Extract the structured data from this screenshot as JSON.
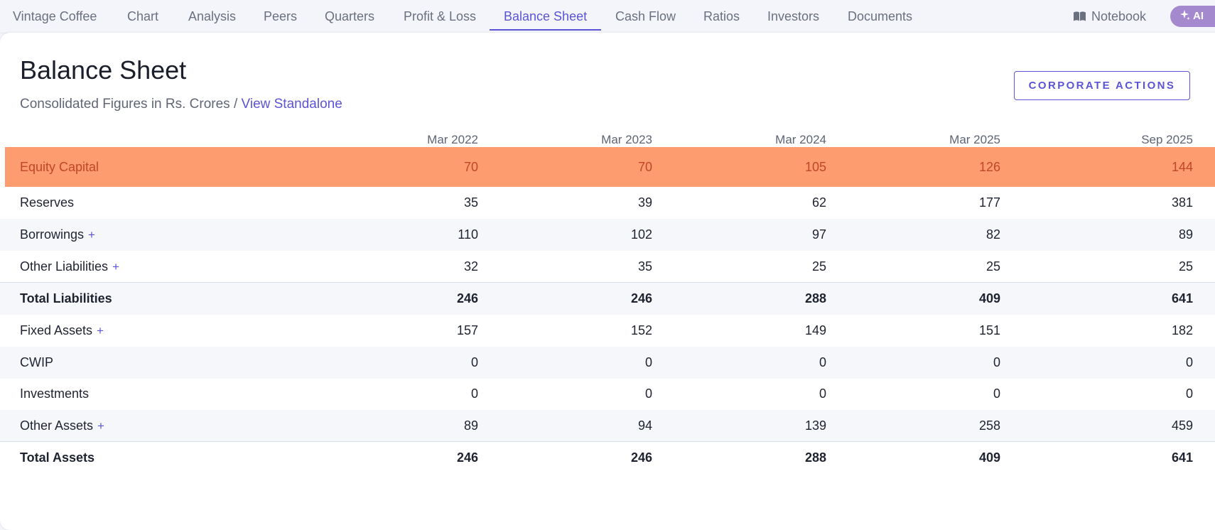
{
  "nav": {
    "tabs": [
      {
        "label": "Vintage Coffee"
      },
      {
        "label": "Chart"
      },
      {
        "label": "Analysis"
      },
      {
        "label": "Peers"
      },
      {
        "label": "Quarters"
      },
      {
        "label": "Profit & Loss"
      },
      {
        "label": "Balance Sheet",
        "active": true
      },
      {
        "label": "Cash Flow"
      },
      {
        "label": "Ratios"
      },
      {
        "label": "Investors"
      },
      {
        "label": "Documents"
      }
    ],
    "notebook_label": "Notebook",
    "ai_label": "AI"
  },
  "page": {
    "title": "Balance Sheet",
    "subtitle_text": "Consolidated Figures in Rs. Crores / ",
    "subtitle_link": "View Standalone",
    "corporate_actions_label": "CORPORATE ACTIONS"
  },
  "table": {
    "columns": [
      "Mar 2022",
      "Mar 2023",
      "Mar 2024",
      "Mar 2025",
      "Sep 2025"
    ],
    "rows": [
      {
        "label": "Equity Capital",
        "values": [
          "70",
          "70",
          "105",
          "126",
          "144"
        ]
      },
      {
        "label": "Reserves",
        "values": [
          "35",
          "39",
          "62",
          "177",
          "381"
        ]
      },
      {
        "label": "Borrowings",
        "plus": "+",
        "values": [
          "110",
          "102",
          "97",
          "82",
          "89"
        ]
      },
      {
        "label": "Other Liabilities",
        "plus": "+",
        "values": [
          "32",
          "35",
          "25",
          "25",
          "25"
        ]
      },
      {
        "label": "Total Liabilities",
        "values": [
          "246",
          "246",
          "288",
          "409",
          "641"
        ]
      },
      {
        "label": "Fixed Assets",
        "plus": "+",
        "values": [
          "157",
          "152",
          "149",
          "151",
          "182"
        ]
      },
      {
        "label": "CWIP",
        "values": [
          "0",
          "0",
          "0",
          "0",
          "0"
        ]
      },
      {
        "label": "Investments",
        "values": [
          "0",
          "0",
          "0",
          "0",
          "0"
        ]
      },
      {
        "label": "Other Assets",
        "plus": "+",
        "values": [
          "89",
          "94",
          "139",
          "258",
          "459"
        ]
      },
      {
        "label": "Total Assets",
        "values": [
          "246",
          "246",
          "288",
          "409",
          "641"
        ]
      }
    ]
  },
  "colors": {
    "accent": "#5b54d6",
    "highlight_row": "#fd9c6e",
    "highlight_text": "#c0472b",
    "ai_button": "#a489cf"
  },
  "icons": {
    "notebook": "book-icon",
    "ai": "sparkle-icon"
  }
}
